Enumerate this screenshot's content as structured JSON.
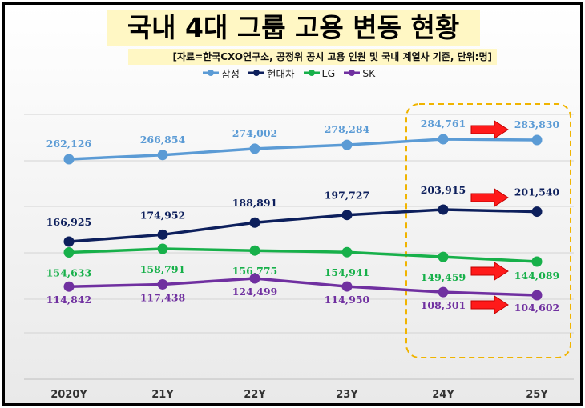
{
  "title": "국내 4대 그룹 고용 변동 현황",
  "subtitle": "[자료=한국CXO연구소, 공정위 공시 고용 인원 및 국내 계열사 기준, 단위:명]",
  "chart_data": {
    "type": "line",
    "title": "국내 4대 그룹 고용 변동 현황",
    "subtitle": "[자료=한국CXO연구소, 공정위 공시 고용 인원 및 국내 계열사 기준, 단위:명]",
    "categories": [
      "2020Y",
      "21Y",
      "22Y",
      "23Y",
      "24Y",
      "25Y"
    ],
    "series": [
      {
        "name": "삼성",
        "color": "#5b9bd5",
        "values": [
          262126,
          266854,
          274002,
          278284,
          284761,
          283830
        ],
        "labels": [
          "262,126",
          "266,854",
          "274,002",
          "278,284",
          "284,761",
          "283,830"
        ]
      },
      {
        "name": "현대차",
        "color": "#0d1f5c",
        "values": [
          166925,
          174952,
          188891,
          197727,
          203915,
          201540
        ],
        "labels": [
          "166,925",
          "174,952",
          "188,891",
          "197,727",
          "203,915",
          "201,540"
        ]
      },
      {
        "name": "LG",
        "color": "#17b04a",
        "values": [
          154633,
          158791,
          156775,
          154941,
          149459,
          144089
        ],
        "labels": [
          "154,633",
          "158,791",
          "156,775",
          "154,941",
          "149,459",
          "144,089"
        ]
      },
      {
        "name": "SK",
        "color": "#7030a0",
        "values": [
          114842,
          117438,
          124499,
          114950,
          108301,
          104602
        ],
        "labels": [
          "114,842",
          "117,438",
          "124,499",
          "114,950",
          "108,301",
          "104,602"
        ]
      }
    ],
    "legend_position": "top",
    "grid": true,
    "highlight": {
      "categories": [
        "24Y",
        "25Y"
      ],
      "style": "dashed orange box with red arrows"
    }
  }
}
